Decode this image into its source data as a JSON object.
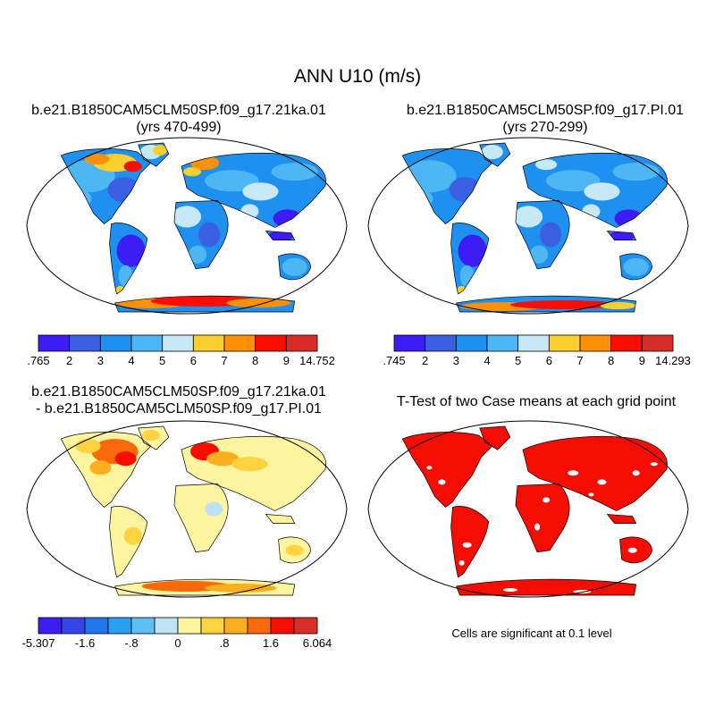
{
  "title": "ANN U10 (m/s)",
  "panels": [
    {
      "id": "case",
      "title_lines": [
        "b.e21.B1850CAM5CLM50SP.f09_g17.21ka.01",
        "(yrs 470-499)"
      ],
      "colorbar": {
        "colors": [
          "#3d1cf5",
          "#3b5fe3",
          "#1e90f0",
          "#4cb7f2",
          "#c6e8f7",
          "#fdcf2e",
          "#fd9004",
          "#fb0d02",
          "#d82c26"
        ],
        "labels": [
          ".765",
          "2",
          "3",
          "4",
          "5",
          "6",
          "7",
          "8",
          "9",
          "14.752"
        ]
      }
    },
    {
      "id": "reference",
      "title_lines": [
        "b.e21.B1850CAM5CLM50SP.f09_g17.PI.01",
        "(yrs 270-299)"
      ],
      "colorbar": {
        "colors": [
          "#3d1cf5",
          "#3b5fe3",
          "#1e90f0",
          "#4cb7f2",
          "#c6e8f7",
          "#fdcf2e",
          "#fd9004",
          "#fb0d02",
          "#d82c26"
        ],
        "labels": [
          ".745",
          "2",
          "3",
          "4",
          "5",
          "6",
          "7",
          "8",
          "9",
          "14.293"
        ]
      }
    },
    {
      "id": "difference",
      "title_lines": [
        "b.e21.B1850CAM5CLM50SP.f09_g17.21ka.01",
        "- b.e21.B1850CAM5CLM50SP.f09_g17.PI.01"
      ],
      "colorbar": {
        "colors": [
          "#3d1cf5",
          "#3545e6",
          "#1f78ee",
          "#2aa0f2",
          "#5fbff2",
          "#bfe3f5",
          "#fdf4a0",
          "#fdd43f",
          "#fdae1f",
          "#fb6a0a",
          "#f60d02",
          "#d7302a"
        ],
        "labels": [
          "-5.307",
          "-1.6",
          "-.8",
          "0",
          ".8",
          "1.6",
          "6.064"
        ]
      }
    },
    {
      "id": "ttest",
      "title_lines": [
        "T-Test of two Case means at each grid point"
      ],
      "note": "Cells are significant at 0.1 level"
    }
  ]
}
